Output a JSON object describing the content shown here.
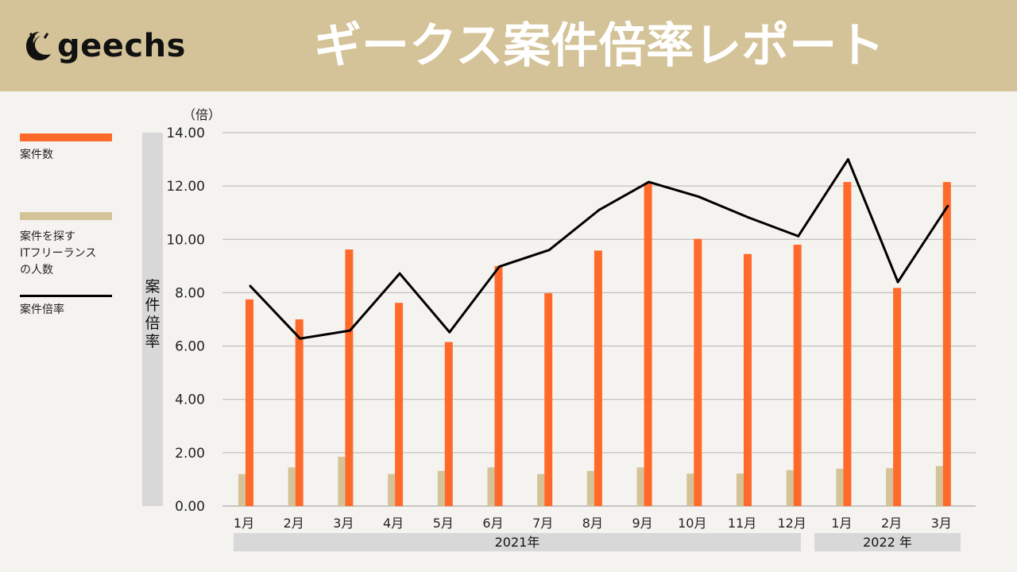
{
  "header": {
    "logo_text": "geechs",
    "title": "ギークス案件倍率レポート"
  },
  "legend": [
    {
      "label": "案件数",
      "color": "#ff6a2b",
      "kind": "bar"
    },
    {
      "label": "案件を探す\nITフリーランス\nの人数",
      "color": "#d4c398",
      "kind": "bar"
    },
    {
      "label": "案件倍率",
      "color": "#000000",
      "kind": "line"
    }
  ],
  "axis": {
    "ylabel": "案件倍率",
    "unit": "（倍）"
  },
  "year_groups": [
    {
      "label": "2021年"
    },
    {
      "label": "2022 年"
    }
  ],
  "chart_data": {
    "type": "bar",
    "categories": [
      "1月",
      "2月",
      "3月",
      "4月",
      "5月",
      "6月",
      "7月",
      "8月",
      "9月",
      "10月",
      "11月",
      "12月",
      "1月",
      "2月",
      "3月"
    ],
    "series": [
      {
        "name": "案件数",
        "type": "bar",
        "color": "#ff6a2b",
        "values": [
          7.75,
          7.0,
          9.62,
          7.62,
          6.15,
          9.0,
          7.98,
          9.58,
          12.1,
          10.02,
          9.45,
          9.8,
          12.15,
          8.18,
          12.15
        ]
      },
      {
        "name": "案件を探す\nITフリーランス\nの人数",
        "type": "bar",
        "color": "#d4c398",
        "values": [
          1.2,
          1.45,
          1.85,
          1.2,
          1.32,
          1.45,
          1.2,
          1.32,
          1.45,
          1.22,
          1.22,
          1.35,
          1.4,
          1.42,
          1.5
        ]
      },
      {
        "name": "案件倍率",
        "type": "line",
        "color": "#000000",
        "values": [
          8.25,
          6.28,
          6.58,
          8.72,
          6.52,
          8.98,
          9.6,
          11.1,
          12.15,
          11.6,
          10.82,
          10.12,
          13.0,
          8.4,
          11.25
        ]
      }
    ],
    "ylim": [
      0,
      14
    ],
    "yticks": [
      "0.00",
      "2.00",
      "4.00",
      "6.00",
      "8.00",
      "10.00",
      "12.00",
      "14.00"
    ],
    "grid": true
  }
}
